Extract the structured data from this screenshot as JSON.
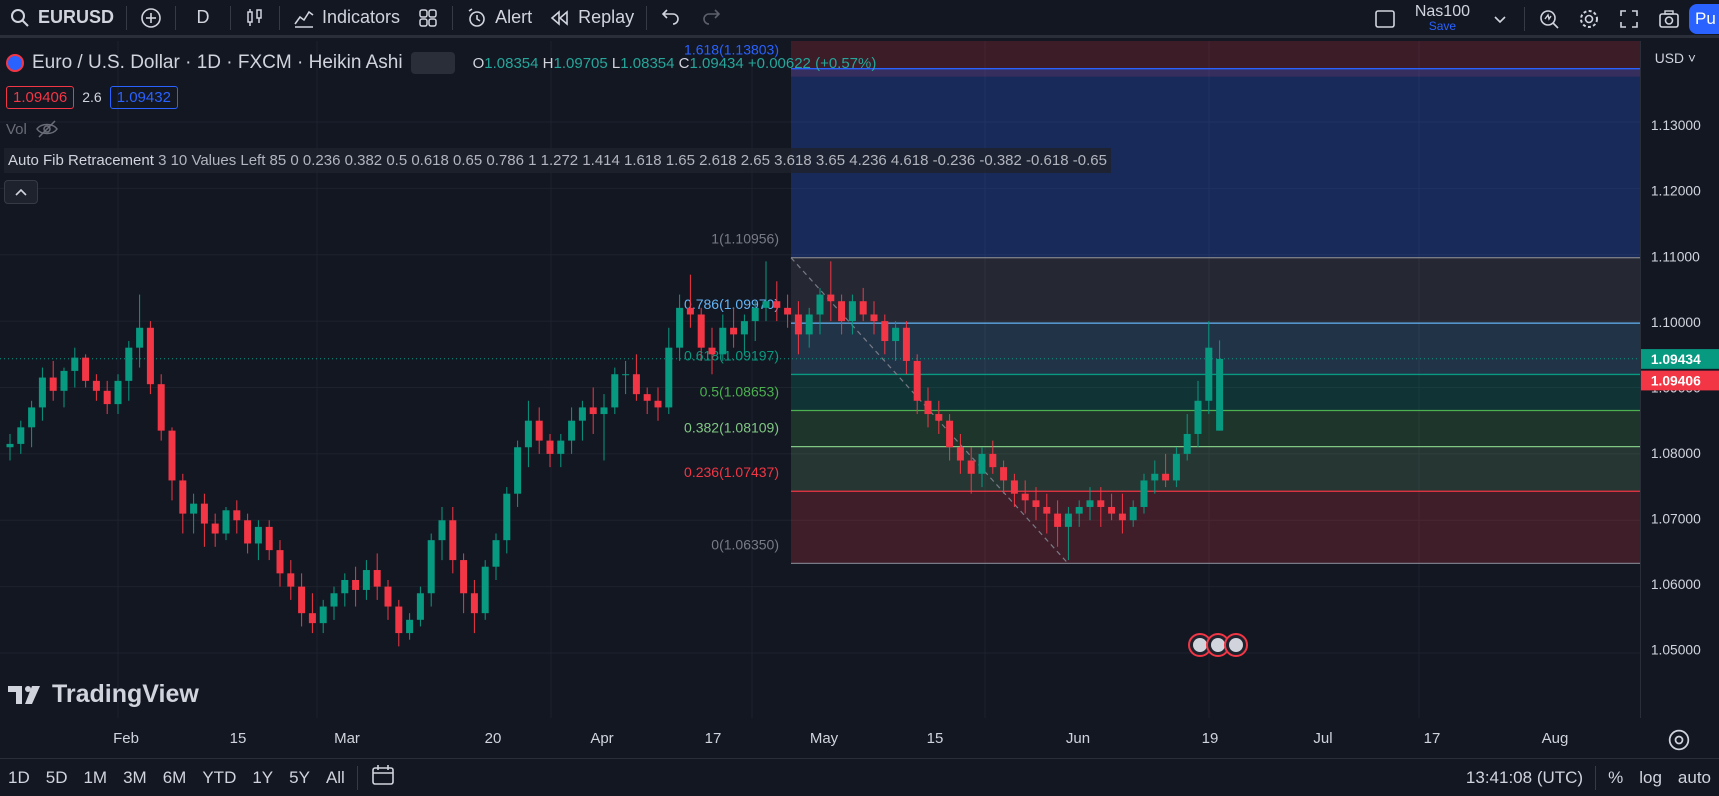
{
  "toolbar": {
    "symbol": "EURUSD",
    "interval": "D",
    "indicators_label": "Indicators",
    "alert_label": "Alert",
    "replay_label": "Replay",
    "layout_name": "Nas100",
    "layout_save": "Save",
    "publish_label": "Pu"
  },
  "legend": {
    "title": "Euro / U.S. Dollar · 1D · FXCM · Heikin Ashi",
    "ohlc": {
      "o_label": "O",
      "o": "1.08354",
      "h_label": "H",
      "h": "1.09705",
      "l_label": "L",
      "l": "1.08354",
      "c_label": "C",
      "c": "1.09434",
      "change": "+0.00622 (+0.57%)"
    },
    "sell_price": "1.09406",
    "spread": "2.6",
    "buy_price": "1.09432",
    "vol_label": "Vol",
    "fib_name": "Auto Fib Retracement",
    "fib_values": "3 10 Values Left 85 0 0.236 0.382 0.5 0.618 0.65 0.786 1 1.272 1.414 1.618 1.65 2.618 2.65 3.618 3.65 4.236 4.618 -0.236 -0.382 -0.618 -0.65"
  },
  "price_axis": {
    "currency": "USD",
    "ticks": [
      "1.13000",
      "1.12000",
      "1.11000",
      "1.10000",
      "1.08000",
      "1.07000",
      "1.06000",
      "1.05000"
    ],
    "last_price": "1.09434",
    "bid_price": "1.09406",
    "partial_tick": "1.09000"
  },
  "time_axis": {
    "labels": [
      "Feb",
      "15",
      "Mar",
      "20",
      "Apr",
      "17",
      "May",
      "15",
      "Jun",
      "19",
      "Jul",
      "17",
      "Aug"
    ]
  },
  "fib_levels": [
    {
      "label": "1.618(1.13803)",
      "color": "#2962ff"
    },
    {
      "label": "1(1.10956)",
      "color": "#787b86"
    },
    {
      "label": "0.786(1.09970)",
      "color": "#64b5f6"
    },
    {
      "label": "0.618(1.09197)",
      "color": "#089981"
    },
    {
      "label": "0.5(1.08653)",
      "color": "#4caf50"
    },
    {
      "label": "0.382(1.08109)",
      "color": "#81c784"
    },
    {
      "label": "0.236(1.07437)",
      "color": "#f23645"
    },
    {
      "label": "0(1.06350)",
      "color": "#787b86"
    }
  ],
  "bottombar": {
    "ranges": [
      "1D",
      "5D",
      "1M",
      "3M",
      "6M",
      "YTD",
      "1Y",
      "5Y",
      "All"
    ],
    "clock": "13:41:08 (UTC)",
    "pct": "%",
    "log": "log",
    "auto": "auto"
  },
  "branding": {
    "logo_text": "TradingView"
  },
  "colors": {
    "up": "#089981",
    "down": "#f23645",
    "bg": "#131722",
    "accent": "#2962ff"
  },
  "chart_data": {
    "type": "candlestick",
    "title": "Euro / U.S. Dollar · 1D · FXCM · Heikin Ashi",
    "ylim": [
      1.05,
      1.14
    ],
    "candles": [
      [
        1.081,
        1.083,
        1.079,
        1.0815
      ],
      [
        1.0815,
        1.085,
        1.08,
        1.084
      ],
      [
        1.084,
        1.088,
        1.081,
        1.087
      ],
      [
        1.087,
        1.093,
        1.085,
        1.0915
      ],
      [
        1.0915,
        1.094,
        1.088,
        1.0895
      ],
      [
        1.0895,
        1.093,
        1.087,
        1.0925
      ],
      [
        1.0925,
        1.096,
        1.09,
        1.0945
      ],
      [
        1.0945,
        1.095,
        1.09,
        1.091
      ],
      [
        1.091,
        1.092,
        1.088,
        1.0895
      ],
      [
        1.0895,
        1.091,
        1.086,
        1.0875
      ],
      [
        1.0875,
        1.092,
        1.086,
        1.091
      ],
      [
        1.091,
        1.097,
        1.088,
        1.096
      ],
      [
        1.096,
        1.104,
        1.093,
        1.099
      ],
      [
        1.099,
        1.1,
        1.089,
        1.0905
      ],
      [
        1.0905,
        1.092,
        1.082,
        1.0835
      ],
      [
        1.0835,
        1.084,
        1.073,
        1.076
      ],
      [
        1.076,
        1.077,
        1.068,
        1.071
      ],
      [
        1.071,
        1.074,
        1.068,
        1.0725
      ],
      [
        1.0725,
        1.074,
        1.066,
        1.0695
      ],
      [
        1.0695,
        1.071,
        1.066,
        1.068
      ],
      [
        1.068,
        1.072,
        1.067,
        1.0715
      ],
      [
        1.0715,
        1.073,
        1.068,
        1.07
      ],
      [
        1.07,
        1.071,
        1.065,
        1.0665
      ],
      [
        1.0665,
        1.07,
        1.064,
        1.069
      ],
      [
        1.069,
        1.07,
        1.064,
        1.0655
      ],
      [
        1.0655,
        1.067,
        1.06,
        1.062
      ],
      [
        1.062,
        1.064,
        1.058,
        1.06
      ],
      [
        1.06,
        1.062,
        1.054,
        1.056
      ],
      [
        1.056,
        1.059,
        1.053,
        1.0545
      ],
      [
        1.0545,
        1.058,
        1.053,
        1.057
      ],
      [
        1.057,
        1.06,
        1.055,
        1.059
      ],
      [
        1.059,
        1.062,
        1.057,
        1.061
      ],
      [
        1.061,
        1.063,
        1.057,
        1.0595
      ],
      [
        1.0595,
        1.064,
        1.058,
        1.0625
      ],
      [
        1.0625,
        1.065,
        1.058,
        1.06
      ],
      [
        1.06,
        1.061,
        1.055,
        1.057
      ],
      [
        1.057,
        1.058,
        1.051,
        1.053
      ],
      [
        1.053,
        1.056,
        1.052,
        1.055
      ],
      [
        1.055,
        1.06,
        1.054,
        1.059
      ],
      [
        1.059,
        1.068,
        1.057,
        1.067
      ],
      [
        1.067,
        1.072,
        1.064,
        1.07
      ],
      [
        1.07,
        1.072,
        1.062,
        1.064
      ],
      [
        1.064,
        1.065,
        1.056,
        1.059
      ],
      [
        1.059,
        1.061,
        1.053,
        1.056
      ],
      [
        1.056,
        1.064,
        1.055,
        1.063
      ],
      [
        1.063,
        1.068,
        1.061,
        1.067
      ],
      [
        1.067,
        1.075,
        1.065,
        1.074
      ],
      [
        1.074,
        1.082,
        1.072,
        1.081
      ],
      [
        1.081,
        1.088,
        1.078,
        1.085
      ],
      [
        1.085,
        1.087,
        1.08,
        1.082
      ],
      [
        1.082,
        1.083,
        1.078,
        1.08
      ],
      [
        1.08,
        1.083,
        1.078,
        1.082
      ],
      [
        1.082,
        1.087,
        1.08,
        1.085
      ],
      [
        1.085,
        1.088,
        1.082,
        1.087
      ],
      [
        1.087,
        1.09,
        1.083,
        1.086
      ],
      [
        1.086,
        1.089,
        1.079,
        1.087
      ],
      [
        1.087,
        1.093,
        1.086,
        1.092
      ],
      [
        1.092,
        1.094,
        1.089,
        1.092
      ],
      [
        1.092,
        1.095,
        1.088,
        1.089
      ],
      [
        1.089,
        1.09,
        1.086,
        1.088
      ],
      [
        1.088,
        1.09,
        1.085,
        1.087
      ],
      [
        1.087,
        1.099,
        1.086,
        1.096
      ],
      [
        1.096,
        1.104,
        1.094,
        1.102
      ],
      [
        1.102,
        1.107,
        1.099,
        1.101
      ],
      [
        1.101,
        1.102,
        1.094,
        1.096
      ],
      [
        1.096,
        1.099,
        1.092,
        1.095
      ],
      [
        1.095,
        1.101,
        1.094,
        1.099
      ],
      [
        1.099,
        1.102,
        1.096,
        1.098
      ],
      [
        1.098,
        1.101,
        1.095,
        1.1
      ],
      [
        1.1,
        1.103,
        1.097,
        1.102
      ],
      [
        1.102,
        1.109,
        1.1,
        1.103
      ],
      [
        1.103,
        1.106,
        1.1,
        1.102
      ],
      [
        1.102,
        1.104,
        1.099,
        1.101
      ],
      [
        1.101,
        1.103,
        1.095,
        1.098
      ],
      [
        1.098,
        1.102,
        1.096,
        1.101
      ],
      [
        1.101,
        1.105,
        1.098,
        1.104
      ],
      [
        1.104,
        1.109,
        1.1,
        1.103
      ],
      [
        1.103,
        1.104,
        1.098,
        1.1
      ],
      [
        1.1,
        1.104,
        1.098,
        1.103
      ],
      [
        1.103,
        1.105,
        1.1,
        1.101
      ],
      [
        1.101,
        1.103,
        1.098,
        1.1
      ],
      [
        1.1,
        1.101,
        1.095,
        1.097
      ],
      [
        1.097,
        1.1,
        1.094,
        1.099
      ],
      [
        1.099,
        1.1,
        1.092,
        1.094
      ],
      [
        1.094,
        1.095,
        1.086,
        1.088
      ],
      [
        1.088,
        1.09,
        1.084,
        1.086
      ],
      [
        1.086,
        1.088,
        1.083,
        1.085
      ],
      [
        1.085,
        1.086,
        1.079,
        1.081
      ],
      [
        1.081,
        1.083,
        1.077,
        1.079
      ],
      [
        1.079,
        1.081,
        1.074,
        1.077
      ],
      [
        1.077,
        1.081,
        1.075,
        1.08
      ],
      [
        1.08,
        1.082,
        1.077,
        1.078
      ],
      [
        1.078,
        1.079,
        1.074,
        1.076
      ],
      [
        1.076,
        1.077,
        1.072,
        1.074
      ],
      [
        1.074,
        1.076,
        1.071,
        1.073
      ],
      [
        1.073,
        1.075,
        1.07,
        1.072
      ],
      [
        1.072,
        1.074,
        1.068,
        1.071
      ],
      [
        1.071,
        1.073,
        1.066,
        1.069
      ],
      [
        1.069,
        1.072,
        1.064,
        1.071
      ],
      [
        1.071,
        1.073,
        1.069,
        1.072
      ],
      [
        1.072,
        1.075,
        1.07,
        1.073
      ],
      [
        1.073,
        1.075,
        1.069,
        1.072
      ],
      [
        1.072,
        1.074,
        1.07,
        1.071
      ],
      [
        1.071,
        1.074,
        1.068,
        1.07
      ],
      [
        1.07,
        1.073,
        1.069,
        1.072
      ],
      [
        1.072,
        1.077,
        1.071,
        1.076
      ],
      [
        1.076,
        1.079,
        1.074,
        1.077
      ],
      [
        1.077,
        1.08,
        1.075,
        1.076
      ],
      [
        1.076,
        1.081,
        1.075,
        1.08
      ],
      [
        1.08,
        1.086,
        1.079,
        1.083
      ],
      [
        1.083,
        1.091,
        1.081,
        1.088
      ],
      [
        1.088,
        1.1,
        1.086,
        1.096
      ],
      [
        1.0835,
        1.0971,
        1.0835,
        1.0943
      ]
    ]
  }
}
